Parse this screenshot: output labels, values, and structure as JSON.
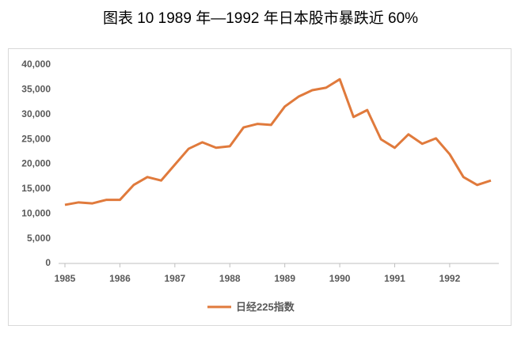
{
  "chart_data": {
    "type": "line",
    "title": "图表 10 1989 年—1992 年日本股市暴跌近 60%",
    "x": [
      1985,
      1985.25,
      1985.5,
      1985.75,
      1986,
      1986.25,
      1986.5,
      1986.75,
      1987,
      1987.25,
      1987.5,
      1987.75,
      1988,
      1988.25,
      1988.5,
      1988.75,
      1989,
      1989.25,
      1989.5,
      1989.75,
      1990,
      1990.25,
      1990.5,
      1990.75,
      1991,
      1991.25,
      1991.5,
      1991.75,
      1992,
      1992.25,
      1992.5,
      1992.75
    ],
    "series": [
      {
        "name": "日经225指数",
        "color": "#e07a3c",
        "values": [
          11800,
          12300,
          12100,
          12800,
          12800,
          15800,
          17400,
          16700,
          19900,
          23100,
          24400,
          23300,
          23600,
          27400,
          28100,
          27900,
          31600,
          33600,
          34900,
          35400,
          37100,
          29500,
          30900,
          25000,
          23300,
          26000,
          24100,
          25200,
          22000,
          17400,
          15800,
          16700
        ]
      }
    ],
    "xlim": [
      1985,
      1992.75
    ],
    "xticks": [
      1985,
      1986,
      1987,
      1988,
      1989,
      1990,
      1991,
      1992
    ],
    "ylim": [
      0,
      40000
    ],
    "yticks": [
      0,
      {
        "value": 5000,
        "label": "5,000"
      },
      {
        "value": 10000,
        "label": "10,000"
      },
      {
        "value": 15000,
        "label": "15,000"
      },
      {
        "value": 20000,
        "label": "20,000"
      },
      {
        "value": 25000,
        "label": "25,000"
      },
      {
        "value": 30000,
        "label": "30,000"
      },
      {
        "value": 35000,
        "label": "35,000"
      },
      {
        "value": 40000,
        "label": "40,000"
      }
    ],
    "legend": "bottom"
  }
}
